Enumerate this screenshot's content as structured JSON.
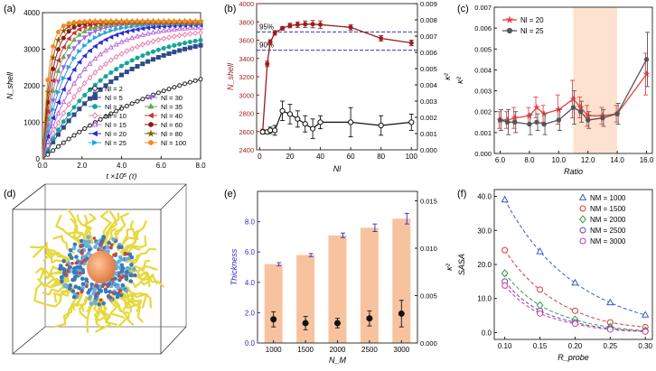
{
  "figure": {
    "panel_labels": [
      "(a)",
      "(b)",
      "(c)",
      "(d)",
      "(e)",
      "(f)"
    ],
    "colors": {
      "axis": "#222222",
      "b_left": "#9c1c1c",
      "b_right": "#111111",
      "b_dash": "#3232c8",
      "c_red": "#e8424a",
      "c_gray": "#555555",
      "c_band": "#fde3cf",
      "e_bar": "#f7c39e",
      "e_err": "#2d2dc8"
    }
  },
  "chart_data": [
    {
      "panel": "a",
      "type": "line",
      "title": "",
      "xlabel": "t ×10⁵ (τ)",
      "ylabel": "N_shell",
      "xlim": [
        0,
        8
      ],
      "ylim": [
        0,
        4000
      ],
      "xticks": [
        "0.0",
        "2.0",
        "4.0",
        "6.0",
        "8.0"
      ],
      "yticks": [
        "0",
        "1000",
        "2000",
        "3000",
        "4000"
      ],
      "legend": "bottom-right",
      "series": [
        {
          "name": "Nl = 2",
          "plateau": 3300,
          "k": 0.135,
          "color": "#222222",
          "marker": "circle-open"
        },
        {
          "name": "Nl = 5",
          "plateau": 3550,
          "k": 0.26,
          "color": "#2e4a8a",
          "marker": "square"
        },
        {
          "name": "Nl = 7",
          "plateau": 3520,
          "k": 0.32,
          "color": "#15a59a",
          "marker": "circle"
        },
        {
          "name": "Nl = 10",
          "plateau": 3600,
          "k": 0.4,
          "color": "#f07fb0",
          "marker": "diamond-open"
        },
        {
          "name": "Nl = 15",
          "plateau": 3650,
          "k": 0.52,
          "color": "#bb6bd9",
          "marker": "triangle-open"
        },
        {
          "name": "Nl = 20",
          "plateau": 3680,
          "k": 0.68,
          "color": "#2b2bd0",
          "marker": "triangle-left"
        },
        {
          "name": "Nl = 25",
          "plateau": 3700,
          "k": 0.85,
          "color": "#29a4d9",
          "marker": "triangle-right"
        },
        {
          "name": "Nl = 30",
          "plateau": 3710,
          "k": 1.05,
          "color": "#9b6bd9",
          "marker": "triangle-down"
        },
        {
          "name": "Nl = 35",
          "plateau": 3720,
          "k": 1.3,
          "color": "#6aa84f",
          "marker": "triangle-up"
        },
        {
          "name": "Nl = 40",
          "plateau": 3730,
          "k": 1.6,
          "color": "#cc3333",
          "marker": "triangle-left"
        },
        {
          "name": "Nl = 60",
          "plateau": 3750,
          "k": 2.0,
          "color": "#8b1a1a",
          "marker": "circle"
        },
        {
          "name": "Nl = 80",
          "plateau": 3760,
          "k": 2.5,
          "color": "#8a5a00",
          "marker": "star"
        },
        {
          "name": "Nl = 100",
          "plateau": 3760,
          "k": 3.2,
          "color": "#f28a1f",
          "marker": "circle"
        }
      ]
    },
    {
      "panel": "b",
      "type": "line",
      "xlabel": "Nl",
      "ylabel_left": "N_shell",
      "ylabel_right": "κ²",
      "xlim": [
        -2,
        104
      ],
      "ylim_left": [
        2400,
        4000
      ],
      "ylim_right": [
        0,
        0.009
      ],
      "xticks": [
        "0",
        "20",
        "40",
        "60",
        "80",
        "100"
      ],
      "yticks_left": [
        "2400",
        "2600",
        "2800",
        "3000",
        "3200",
        "3400",
        "3600",
        "3800",
        "4000"
      ],
      "yticks_right": [
        "0.000",
        "0.001",
        "0.002",
        "0.003",
        "0.004",
        "0.005",
        "0.006",
        "0.007",
        "0.008",
        "0.009"
      ],
      "ref_lines": [
        {
          "label": "95%",
          "y": 3690
        },
        {
          "label": "90%",
          "y": 3490
        }
      ],
      "shell": {
        "x": [
          2,
          5,
          7,
          10,
          15,
          20,
          25,
          30,
          35,
          40,
          60,
          80,
          100
        ],
        "y": [
          2600,
          3340,
          3580,
          3680,
          3730,
          3760,
          3770,
          3775,
          3775,
          3770,
          3740,
          3620,
          3570
        ],
        "err": [
          25,
          30,
          25,
          25,
          20,
          25,
          30,
          35,
          40,
          40,
          30,
          30,
          30
        ]
      },
      "kappa": {
        "x": [
          2,
          5,
          7,
          10,
          15,
          20,
          25,
          30,
          35,
          40,
          60,
          80,
          100
        ],
        "y": [
          0.0011,
          0.0011,
          0.0012,
          0.0012,
          0.0024,
          0.0022,
          0.0019,
          0.0016,
          0.0013,
          0.0017,
          0.0017,
          0.0015,
          0.0017
        ],
        "err": [
          0.0001,
          0.0001,
          0.0002,
          0.0003,
          0.0006,
          0.0006,
          0.0005,
          0.0005,
          0.0006,
          0.0004,
          0.0009,
          0.0006,
          0.0005
        ]
      }
    },
    {
      "panel": "c",
      "type": "line",
      "xlabel": "Ratio",
      "ylabel": "κ²",
      "xlim": [
        5.6,
        16.4
      ],
      "ylim": [
        0,
        0.007
      ],
      "xticks": [
        "6.0",
        "8.0",
        "10.0",
        "12.0",
        "14.0",
        "16.0"
      ],
      "yticks": [
        "0.000",
        "0.001",
        "0.002",
        "0.003",
        "0.004",
        "0.005",
        "0.006",
        "0.007"
      ],
      "shaded_range": [
        11,
        14
      ],
      "legend": "top-left",
      "series": [
        {
          "name": "Nl = 20",
          "x": [
            6,
            6.5,
            7,
            8,
            8.5,
            9,
            10,
            11,
            11.5,
            12,
            13,
            14,
            16
          ],
          "y": [
            0.0016,
            0.0016,
            0.0017,
            0.0018,
            0.0022,
            0.0019,
            0.0021,
            0.0026,
            0.0022,
            0.0018,
            0.0018,
            0.0019,
            0.0038
          ],
          "err": [
            0.0004,
            0.0004,
            0.0005,
            0.0004,
            0.0005,
            0.0004,
            0.0007,
            0.0009,
            0.0005,
            0.0005,
            0.0004,
            0.0004,
            0.001
          ]
        },
        {
          "name": "Nl = 25",
          "x": [
            6,
            6.5,
            7,
            8,
            8.5,
            9,
            10,
            11,
            11.5,
            12,
            13,
            14,
            16
          ],
          "y": [
            0.0016,
            0.0015,
            0.0015,
            0.0014,
            0.0015,
            0.0014,
            0.0016,
            0.0022,
            0.002,
            0.0016,
            0.0017,
            0.0019,
            0.0045
          ],
          "err": [
            0.0005,
            0.0006,
            0.0005,
            0.0005,
            0.0004,
            0.0005,
            0.0005,
            0.0008,
            0.0005,
            0.0004,
            0.0004,
            0.0005,
            0.0013
          ]
        }
      ]
    },
    {
      "panel": "e",
      "type": "bar",
      "xlabel": "N_M",
      "ylabel_left": "Thickness",
      "ylabel_right": "κ²",
      "categories": [
        "1000",
        "1500",
        "2000",
        "2500",
        "3000"
      ],
      "ylim_left": [
        0,
        10
      ],
      "ylim_right": [
        0,
        0.016
      ],
      "yticks_left": [
        "0.0",
        "2.0",
        "4.0",
        "6.0",
        "8.0"
      ],
      "yticks_right": [
        "0.000",
        "0.005",
        "0.010",
        "0.015"
      ],
      "thickness": [
        5.2,
        5.8,
        7.1,
        7.6,
        8.2
      ],
      "thickness_err": [
        0.1,
        0.1,
        0.15,
        0.25,
        0.35
      ],
      "kappa": [
        0.0025,
        0.0021,
        0.0021,
        0.0026,
        0.0031
      ],
      "kappa_err": [
        0.0008,
        0.0007,
        0.0005,
        0.0008,
        0.0014
      ]
    },
    {
      "panel": "f",
      "type": "scatter",
      "xlabel": "R_probe",
      "ylabel": "SASA",
      "xlim": [
        0.085,
        0.31
      ],
      "ylim": [
        -2,
        42
      ],
      "xticks": [
        "0.10",
        "0.15",
        "0.20",
        "0.25",
        "0.30"
      ],
      "yticks": [
        "0.0",
        "10.0",
        "20.0",
        "30.0",
        "40.0"
      ],
      "legend": "top-right",
      "x": [
        0.1,
        0.15,
        0.2,
        0.25,
        0.3
      ],
      "series": [
        {
          "name": "NM = 1000",
          "values": [
            39.0,
            23.8,
            14.6,
            8.8,
            5.2
          ],
          "color": "#3b5bcc",
          "marker": "triangle-open"
        },
        {
          "name": "NM = 1500",
          "values": [
            24.2,
            12.6,
            6.4,
            3.0,
            1.6
          ],
          "color": "#d63a3a",
          "marker": "circle-open"
        },
        {
          "name": "NM = 2000",
          "values": [
            17.4,
            8.0,
            3.8,
            1.6,
            0.6
          ],
          "color": "#2e9e3e",
          "marker": "diamond-open"
        },
        {
          "name": "NM = 2500",
          "values": [
            15.0,
            6.4,
            3.0,
            1.2,
            0.4
          ],
          "color": "#6a3fbf",
          "marker": "circle-open"
        },
        {
          "name": "NM = 3000",
          "values": [
            13.8,
            5.6,
            2.6,
            0.9,
            0.3
          ],
          "color": "#c2409a",
          "marker": "circle-open"
        }
      ]
    }
  ]
}
